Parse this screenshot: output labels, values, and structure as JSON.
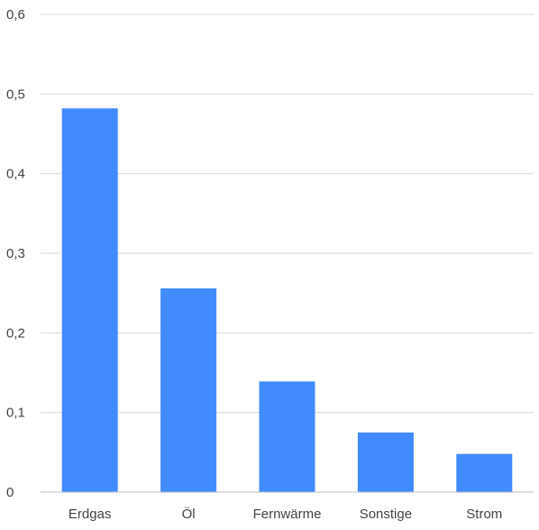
{
  "chart_data": {
    "type": "bar",
    "title": "",
    "xlabel": "",
    "ylabel": "",
    "categories": [
      "Erdgas",
      "Öl",
      "Fernwärme",
      "Sonstige",
      "Strom"
    ],
    "values": [
      0.482,
      0.256,
      0.139,
      0.075,
      0.048
    ],
    "ylim": [
      0,
      0.6
    ],
    "yticks": [
      0,
      0.1,
      0.2,
      0.3,
      0.4,
      0.5,
      0.6
    ],
    "ytick_labels": [
      "0",
      "0,1",
      "0,2",
      "0,3",
      "0,4",
      "0,5",
      "0,6"
    ],
    "grid": true,
    "legend": "none",
    "colors": {
      "bar": "#418bff",
      "grid": "#d9d9d9",
      "axis": "#bfbfbf",
      "text": "#444444"
    }
  }
}
